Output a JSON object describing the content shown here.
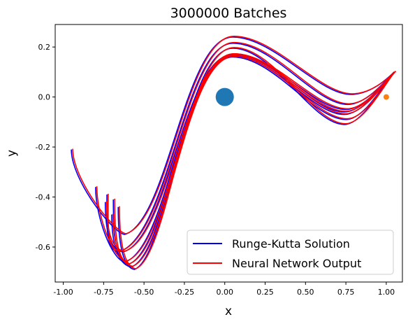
{
  "chart_data": {
    "type": "line",
    "title": "3000000 Batches",
    "xlabel": "x",
    "ylabel": "y",
    "xlim": [
      -1.05,
      1.1
    ],
    "ylim": [
      -0.74,
      0.29
    ],
    "xticks": [
      "-1.00",
      "-0.75",
      "-0.50",
      "-0.25",
      "0.00",
      "0.25",
      "0.50",
      "0.75",
      "1.00"
    ],
    "yticks": [
      "-0.6",
      "-0.4",
      "-0.2",
      "0.0",
      "0.2"
    ],
    "xtick_values": [
      -1.0,
      -0.75,
      -0.5,
      -0.25,
      0.0,
      0.25,
      0.5,
      0.75,
      1.0
    ],
    "ytick_values": [
      -0.6,
      -0.4,
      -0.2,
      0.0,
      0.2
    ],
    "grid": false,
    "legend_position": "lower-right",
    "series": [
      {
        "name": "Runge-Kutta Solution",
        "color": "#0000ff"
      },
      {
        "name": "Neural Network Output",
        "color": "#ff0000"
      }
    ],
    "markers": [
      {
        "x": 0.0,
        "y": 0.0,
        "color": "#1f77b4",
        "size": "large"
      },
      {
        "x": 1.0,
        "y": 0.0,
        "color": "#ff7f0e",
        "size": "small"
      }
    ],
    "trajectories": [
      {
        "start": [
          1.05,
          0.1
        ],
        "peak_y": 0.24,
        "valley": [
          0.78,
          0.01
        ],
        "min": [
          -0.62,
          -0.55
        ],
        "end": [
          -0.95,
          -0.21
        ]
      },
      {
        "start": [
          1.05,
          0.1
        ],
        "peak_y": 0.215,
        "valley": [
          0.76,
          -0.03
        ],
        "min": [
          -0.66,
          -0.62
        ],
        "end": [
          -0.73,
          -0.39
        ]
      },
      {
        "start": [
          1.05,
          0.1
        ],
        "peak_y": 0.17,
        "valley": [
          0.74,
          -0.06
        ],
        "min": [
          -0.62,
          -0.66
        ],
        "end": [
          -0.8,
          -0.36
        ]
      },
      {
        "start": [
          1.05,
          0.1
        ],
        "peak_y": 0.165,
        "valley": [
          0.74,
          -0.07
        ],
        "min": [
          -0.6,
          -0.67
        ],
        "end": [
          -0.69,
          -0.41
        ]
      },
      {
        "start": [
          1.05,
          0.1
        ],
        "peak_y": 0.16,
        "valley": [
          0.75,
          -0.09
        ],
        "min": [
          -0.58,
          -0.68
        ],
        "end": [
          -0.7,
          -0.47
        ]
      },
      {
        "start": [
          1.05,
          0.1
        ],
        "peak_y": 0.195,
        "valley": [
          0.74,
          -0.11
        ],
        "min": [
          -0.56,
          -0.69
        ],
        "end": [
          -0.66,
          -0.44
        ]
      },
      {
        "start": [
          1.05,
          0.1
        ],
        "peak_y": 0.17,
        "valley": [
          0.75,
          -0.05
        ],
        "min": [
          -0.63,
          -0.62
        ],
        "end": [
          -0.74,
          -0.42
        ]
      }
    ]
  }
}
